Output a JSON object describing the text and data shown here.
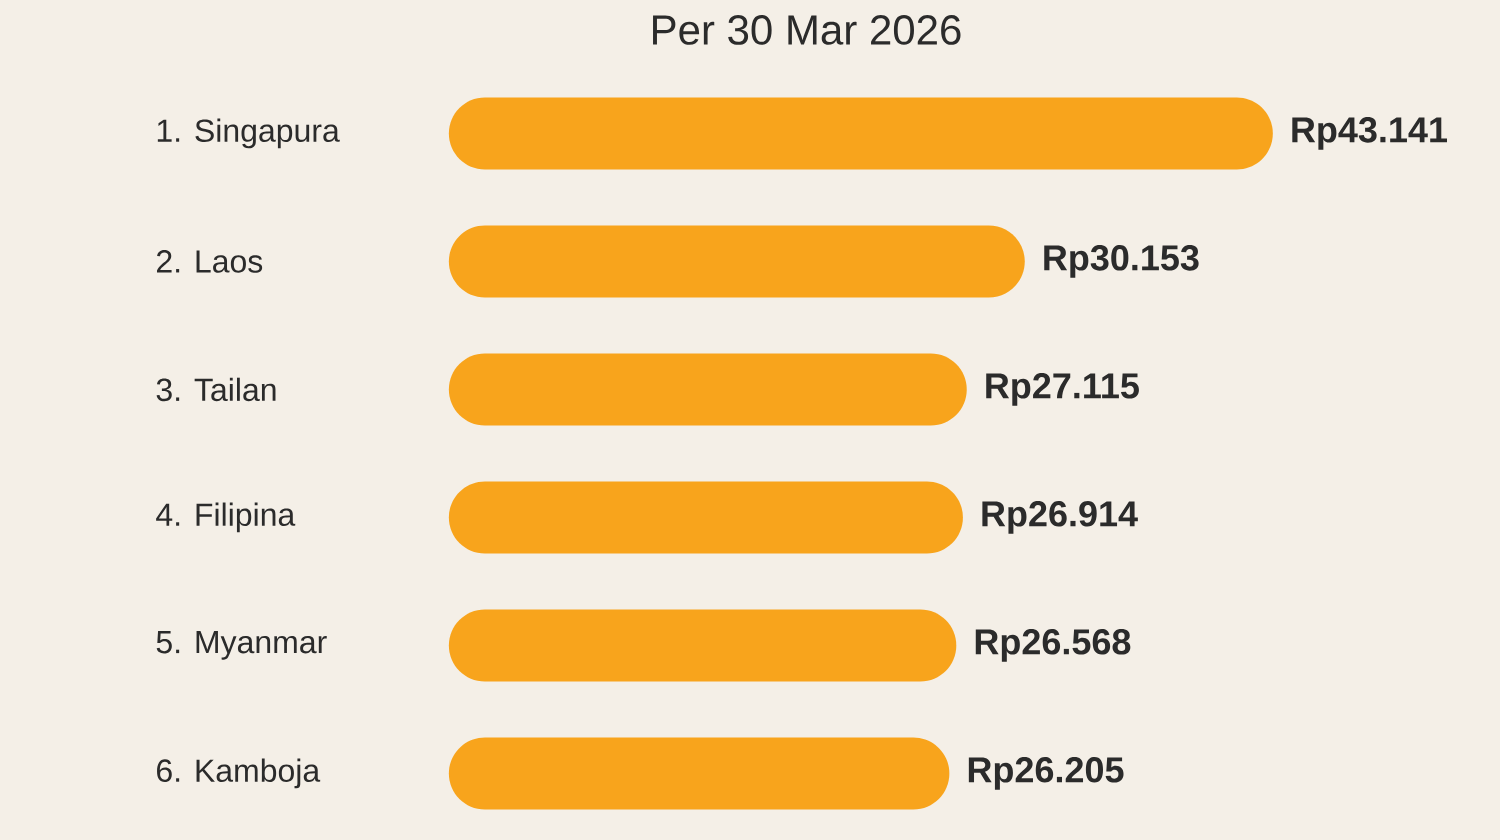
{
  "chart_data": {
    "type": "bar",
    "orientation": "horizontal",
    "title": "Per 30 Mar 2026",
    "categories": [
      "1. Singapura",
      "2. Laos",
      "3. Tailan",
      "4. Filipina",
      "5. Myanmar",
      "6. Kamboja"
    ],
    "values": [
      43141,
      30153,
      27115,
      26914,
      26568,
      26205
    ],
    "value_labels": [
      "Rp43.141",
      "Rp30.153",
      "Rp27.115",
      "Rp26.914",
      "Rp26.568",
      "Rp26.205"
    ],
    "color": "#f8a41c",
    "tick_labels": "y"
  }
}
